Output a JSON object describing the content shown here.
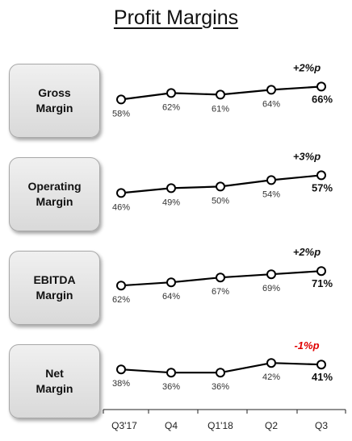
{
  "title": "Profit Margins",
  "chart_data": {
    "type": "line",
    "categories": [
      "Q3'17",
      "Q4",
      "Q1'18",
      "Q2",
      "Q3"
    ],
    "panels": [
      {
        "label": "Gross\nMargin",
        "values": [
          58,
          62,
          61,
          64,
          66
        ],
        "value_labels": [
          "58%",
          "62%",
          "61%",
          "64%",
          "66%"
        ],
        "change": "+2%p",
        "change_color": "#111111"
      },
      {
        "label": "Operating\nMargin",
        "values": [
          46,
          49,
          50,
          54,
          57
        ],
        "value_labels": [
          "46%",
          "49%",
          "50%",
          "54%",
          "57%"
        ],
        "change": "+3%p",
        "change_color": "#111111"
      },
      {
        "label": "EBITDA\nMargin",
        "values": [
          62,
          64,
          67,
          69,
          71
        ],
        "value_labels": [
          "62%",
          "64%",
          "67%",
          "69%",
          "71%"
        ],
        "change": "+2%p",
        "change_color": "#111111"
      },
      {
        "label": "Net\nMargin",
        "values": [
          38,
          36,
          36,
          42,
          41
        ],
        "value_labels": [
          "38%",
          "36%",
          "36%",
          "42%",
          "41%"
        ],
        "change": "-1%p",
        "change_color": "#e00000"
      }
    ]
  }
}
